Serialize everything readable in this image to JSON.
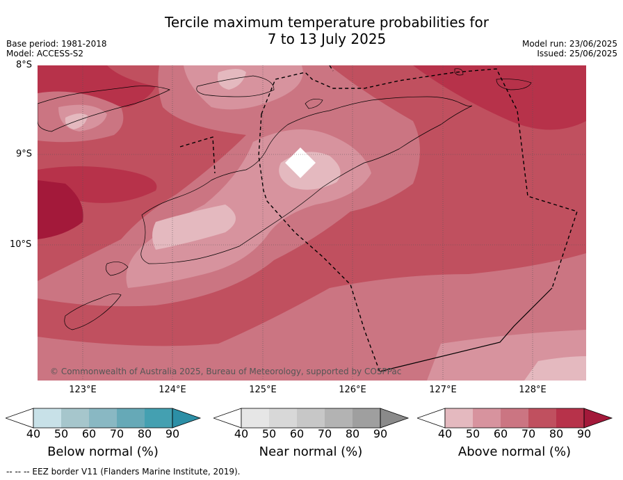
{
  "title_line1": "Tercile maximum temperature probabilities for",
  "title_line2": "7 to 13 July 2025",
  "base_period": "Base period: 1981-2018",
  "model": "Model: ACCESS-S2",
  "model_run": "Model run: 23/06/2025",
  "issued": "Issued: 25/06/2025",
  "copyright": "© Commonwealth of Australia 2025, Bureau of Meteorology, supported by COSPPac",
  "footnote": "-- -- -- EEZ border V11 (Flanders Marine Institute, 2019).",
  "lat_labels": [
    "8°S",
    "9°S",
    "10°S"
  ],
  "lon_labels": [
    "123°E",
    "124°E",
    "125°E",
    "126°E",
    "127°E",
    "128°E"
  ],
  "colorbars": [
    {
      "title": "Below normal (%)",
      "ticks": [
        "40",
        "50",
        "60",
        "70",
        "80",
        "90"
      ],
      "colors": [
        "#ffffff",
        "#c8e1e8",
        "#a6c6cc",
        "#89b8c3",
        "#66a9b7",
        "#44a0b1",
        "#2c8fa6"
      ]
    },
    {
      "title": "Near normal (%)",
      "ticks": [
        "40",
        "50",
        "60",
        "70",
        "80",
        "90"
      ],
      "colors": [
        "#ffffff",
        "#e6e6e6",
        "#d8d8d8",
        "#c7c7c7",
        "#b3b3b3",
        "#9f9f9f",
        "#8a8a8a"
      ]
    },
    {
      "title": "Above normal (%)",
      "ticks": [
        "40",
        "50",
        "60",
        "70",
        "80",
        "90"
      ],
      "colors": [
        "#ffffff",
        "#e4b9bf",
        "#d7939e",
        "#cb7582",
        "#c0505f",
        "#b7324a",
        "#a3193a"
      ]
    }
  ]
}
